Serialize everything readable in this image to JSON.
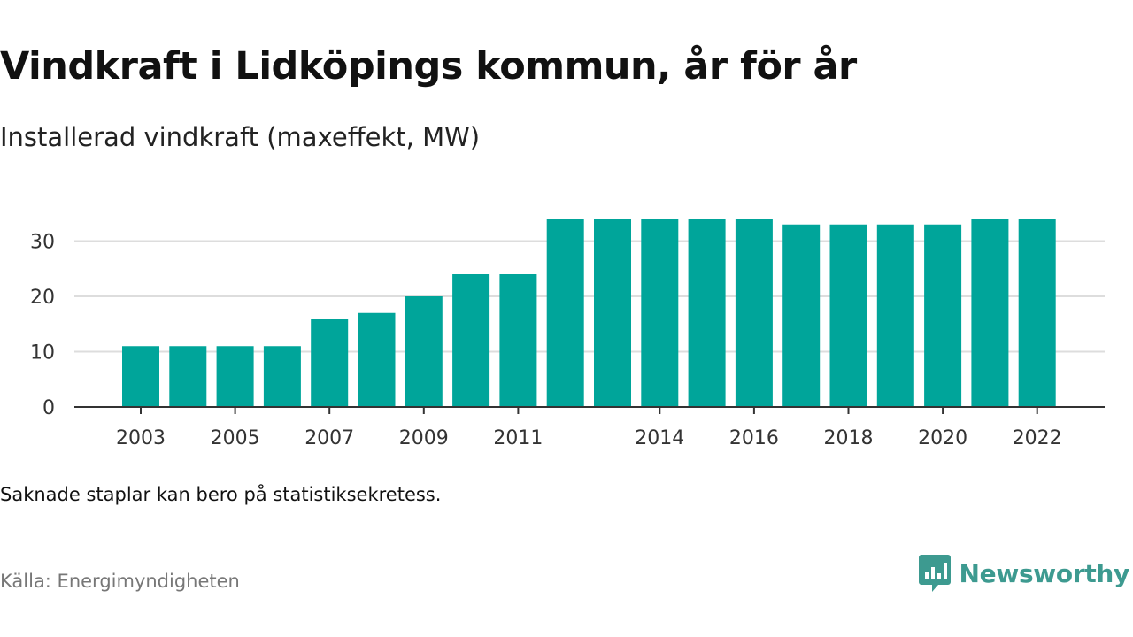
{
  "title": "Vindkraft i Lidköpings kommun, år för år",
  "subtitle": "Installerad vindkraft (maxeffekt, MW)",
  "note": "Saknade staplar kan bero på statistiksekretess.",
  "source": "Källa: Energimyndigheten",
  "brand": {
    "name": "Newsworthy",
    "icon": "newsworthy-logo-icon",
    "color": "#3d9a90"
  },
  "colors": {
    "bar": "#00a59a",
    "grid": "#dddddd",
    "axis": "#333333"
  },
  "chart_data": {
    "type": "bar",
    "x": [
      2003,
      2004,
      2005,
      2006,
      2007,
      2008,
      2009,
      2010,
      2011,
      2012,
      2013,
      2014,
      2015,
      2016,
      2017,
      2018,
      2019,
      2020,
      2021,
      2022
    ],
    "values": [
      11,
      11,
      11,
      11,
      16,
      17,
      20,
      24,
      24,
      34,
      34,
      34,
      34,
      34,
      33,
      33,
      33,
      33,
      34,
      34
    ],
    "x_tick_labels": [
      2003,
      2005,
      2007,
      2009,
      2011,
      2014,
      2016,
      2018,
      2020,
      2022
    ],
    "y_ticks": [
      0,
      10,
      20,
      30
    ],
    "ylim": [
      0,
      35
    ],
    "grid": true,
    "legend": "none"
  }
}
